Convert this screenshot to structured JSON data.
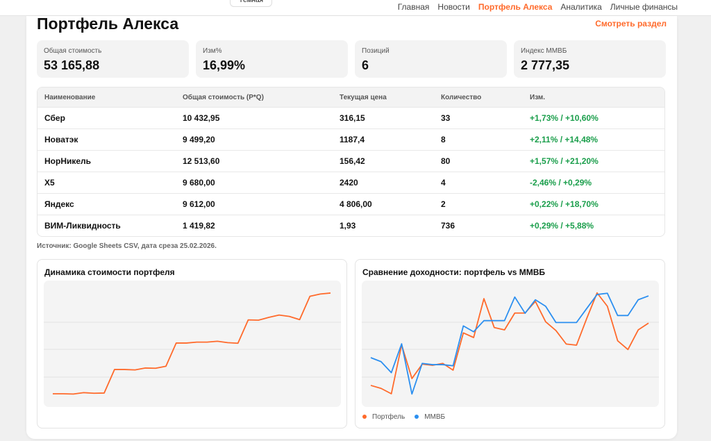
{
  "header": {
    "theme_button": "Тёмная",
    "nav": [
      "Главная",
      "Новости",
      "Портфель Алекса",
      "Аналитика",
      "Личные финансы"
    ],
    "active_nav": 2
  },
  "page": {
    "title": "Портфель Алекса",
    "view_link": "Смотреть раздел"
  },
  "stats": [
    {
      "label": "Общая стоимость",
      "value": "53 165,88"
    },
    {
      "label": "Изм%",
      "value": "16,99%"
    },
    {
      "label": "Позиций",
      "value": "6"
    },
    {
      "label": "Индекс ММВБ",
      "value": "2 777,35"
    }
  ],
  "table": {
    "columns": [
      "Наименование",
      "Общая стоимость (P*Q)",
      "Текущая цена",
      "Количество",
      "Изм."
    ],
    "rows": [
      [
        "Сбер",
        "10 432,95",
        "316,15",
        "33",
        "+1,73% / +10,60%"
      ],
      [
        "Новатэк",
        "9 499,20",
        "1187,4",
        "8",
        "+2,11% / +14,48%"
      ],
      [
        "НорНикель",
        "12 513,60",
        "156,42",
        "80",
        "+1,57% / +21,20%"
      ],
      [
        "X5",
        "9 680,00",
        "2420",
        "4",
        "-2,46% / +0,29%"
      ],
      [
        "Яндекс",
        "9 612,00",
        "4 806,00",
        "2",
        "+0,22% / +18,70%"
      ],
      [
        "ВИМ-Ликвидность",
        "1 419,82",
        "1,93",
        "736",
        "+0,29% / +5,88%"
      ]
    ]
  },
  "source": "Источник: Google Sheets CSV, дата среза 25.02.2026.",
  "colors": {
    "accent": "#ff6a2b",
    "positive": "#1a9e4b",
    "mmvb": "#2b8ff0"
  },
  "chart_data": [
    {
      "type": "line",
      "title": "Динамика стоимости портфеля",
      "grid": true,
      "ylim": [
        0,
        100
      ],
      "series": [
        {
          "values": [
            10,
            10,
            9.8,
            10.9,
            10.4,
            10.6,
            29.4,
            29.4,
            29.1,
            30.6,
            30.4,
            32,
            50.6,
            50.6,
            51.3,
            51.3,
            52,
            50.9,
            50.4,
            69.1,
            68.9,
            71.1,
            73,
            71.9,
            69.3,
            88,
            89.8,
            90.6
          ],
          "color": "#ff6a2b"
        }
      ]
    },
    {
      "type": "line",
      "title": "Сравнение доходности: портфель vs ММВБ",
      "grid": true,
      "ylim": [
        0,
        100
      ],
      "legend": "bottom-left",
      "series": [
        {
          "name": "Портфель",
          "color": "#ff6a2b",
          "values": [
            16.7,
            14.3,
            10,
            49.1,
            22.2,
            33.7,
            32.8,
            34.3,
            28.9,
            58.7,
            55,
            86.1,
            63,
            61.1,
            74.6,
            74.6,
            83.9,
            67.6,
            60.6,
            49.8,
            48.9,
            70.4,
            90.7,
            80,
            52.4,
            45.4,
            61.1,
            66.5
          ]
        },
        {
          "name": "ММВБ",
          "color": "#2b8ff0",
          "values": [
            38.9,
            35.7,
            26.9,
            50,
            9.8,
            34.3,
            33.3,
            33.3,
            32.4,
            64.3,
            59.6,
            68.5,
            68.5,
            68.5,
            87.4,
            74.4,
            85.2,
            80,
            67,
            67,
            67,
            78.3,
            89.4,
            90.4,
            72.6,
            72.6,
            85.2,
            88.3
          ]
        }
      ]
    }
  ]
}
